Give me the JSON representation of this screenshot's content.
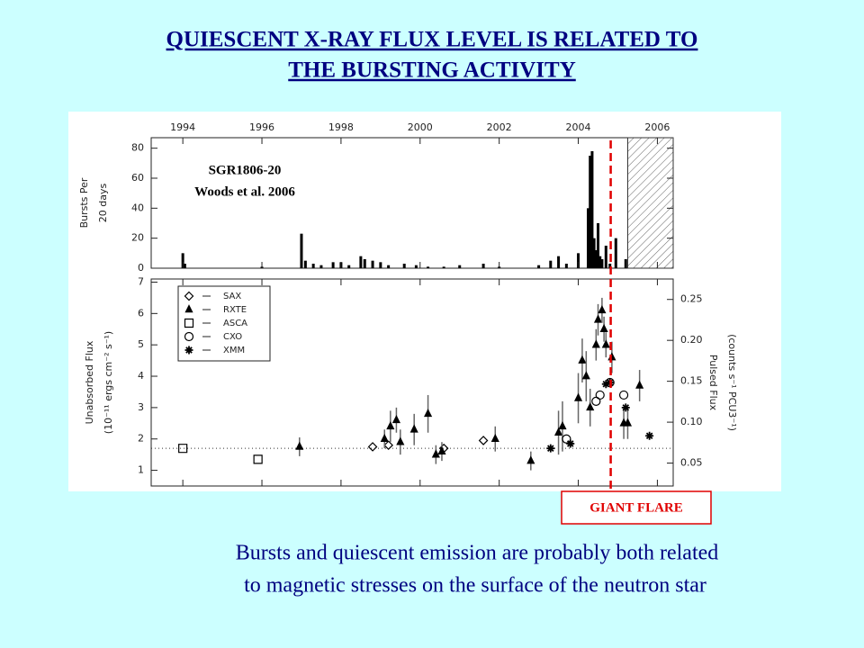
{
  "slide": {
    "title": [
      "QUIESCENT X-RAY FLUX LEVEL IS RELATED TO",
      "THE BURSTING ACTIVITY"
    ],
    "caption": [
      "Bursts and quiescent emission are probably both related",
      "to magnetic stresses on the surface of the neutron star"
    ]
  },
  "chart_data": [
    {
      "type": "bar",
      "ylabel": [
        "Bursts Per",
        "20 days"
      ],
      "annotations": [
        "SGR1806-20",
        "Woods et al. 2006"
      ],
      "x": [
        1994.0,
        1994.05,
        1996.0,
        1997.0,
        1997.1,
        1997.3,
        1997.5,
        1997.8,
        1998.0,
        1998.2,
        1998.5,
        1998.6,
        1998.8,
        1999.0,
        1999.2,
        1999.6,
        1999.9,
        2000.2,
        2000.6,
        2001.0,
        2001.6,
        2002.0,
        2003.0,
        2003.3,
        2003.5,
        2003.7,
        2004.0,
        2004.25,
        2004.3,
        2004.35,
        2004.4,
        2004.45,
        2004.5,
        2004.55,
        2004.6,
        2004.7,
        2004.8,
        2004.95,
        2005.2
      ],
      "values": [
        10,
        3,
        1,
        23,
        5,
        3,
        2,
        4,
        4,
        2,
        8,
        6,
        5,
        4,
        2,
        3,
        2,
        1,
        1,
        2,
        3,
        1,
        2,
        5,
        8,
        3,
        10,
        40,
        75,
        78,
        20,
        12,
        30,
        8,
        6,
        15,
        3,
        20,
        6
      ],
      "color": "#000000",
      "xlim": [
        1993.2,
        2006.4
      ],
      "xticks": [
        1994,
        1996,
        1998,
        2000,
        2002,
        2004,
        2006
      ],
      "ylim": [
        0,
        87
      ],
      "yticks": [
        0,
        20,
        40,
        60,
        80
      ],
      "hatch_from": 2005.25
    },
    {
      "type": "scatter",
      "ylabel": [
        "Unabsorbed Flux",
        "(10⁻¹¹ ergs cm⁻² s⁻¹)"
      ],
      "y2label": [
        "Pulsed Flux",
        "(counts s⁻¹ PCU3⁻¹)"
      ],
      "xlim": [
        1993.2,
        2006.4
      ],
      "ylim": [
        0.5,
        7.1
      ],
      "yticks": [
        1,
        2,
        3,
        4,
        5,
        6,
        7
      ],
      "y2lim": [
        0.022,
        0.275
      ],
      "y2ticks": [
        0.05,
        {
          "value": 0.1,
          "label": "0.10"
        },
        0.15,
        {
          "value": 0.2,
          "label": "0.20"
        },
        0.25
      ],
      "legend": "upper left",
      "hline": 1.7,
      "vline": {
        "x": 2004.82,
        "label": "GIANT FLARE",
        "color": "#e00000"
      },
      "series": [
        {
          "name": "SAX",
          "marker": "diamond",
          "color": "#000000",
          "x": [
            1998.8,
            1999.2,
            2000.6,
            2001.6
          ],
          "values": [
            1.75,
            1.8,
            1.7,
            1.95
          ]
        },
        {
          "name": "RXTE",
          "marker": "triangle",
          "color": "#000000",
          "x": [
            1996.95,
            1999.1,
            1999.25,
            1999.4,
            1999.5,
            1999.85,
            2000.2,
            2000.4,
            2000.55,
            2001.9,
            2002.8,
            2003.5,
            2003.6,
            2004.0,
            2004.1,
            2004.2,
            2004.3,
            2004.45,
            2004.5,
            2004.6,
            2004.65,
            2004.7,
            2004.85,
            2005.15,
            2005.25,
            2005.55
          ],
          "values": [
            1.75,
            2.0,
            2.4,
            2.6,
            1.9,
            2.3,
            2.8,
            1.5,
            1.6,
            2.0,
            1.3,
            2.2,
            2.4,
            3.3,
            4.5,
            4.0,
            3.0,
            5.0,
            5.8,
            6.1,
            5.5,
            5.0,
            4.6,
            2.5,
            2.5,
            3.7
          ],
          "errors": [
            0.3,
            0.3,
            0.5,
            0.4,
            0.4,
            0.5,
            0.6,
            0.3,
            0.3,
            0.4,
            0.3,
            0.7,
            0.8,
            0.8,
            0.7,
            0.8,
            0.6,
            0.5,
            0.5,
            0.4,
            0.4,
            0.4,
            0.5,
            0.5,
            0.5,
            0.5
          ]
        },
        {
          "name": "ASCA",
          "marker": "square",
          "color": "#000000",
          "x": [
            1994.0,
            1995.9
          ],
          "values": [
            1.7,
            1.35
          ]
        },
        {
          "name": "CXO",
          "marker": "circle",
          "color": "#000000",
          "x": [
            2003.7,
            2004.45,
            2004.55,
            2004.8,
            2005.15
          ],
          "values": [
            2.0,
            3.2,
            3.4,
            3.8,
            3.4
          ]
        },
        {
          "name": "XMM",
          "marker": "asterisk",
          "color": "#000000",
          "x": [
            2003.3,
            2003.8,
            2004.7,
            2004.8,
            2005.2,
            2005.8
          ],
          "values": [
            1.7,
            1.85,
            3.75,
            3.8,
            3.0,
            2.1
          ]
        }
      ]
    }
  ]
}
